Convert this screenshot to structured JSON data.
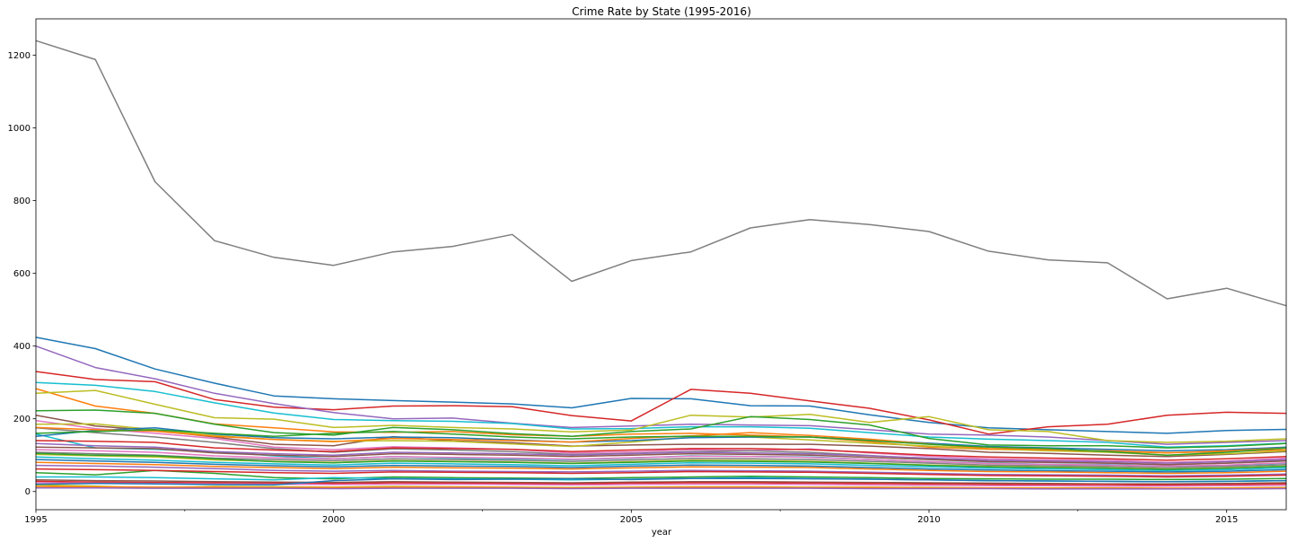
{
  "chart_data": {
    "type": "line",
    "title": "Crime Rate by State (1995-2016)",
    "xlabel": "year",
    "ylabel": "",
    "xlim": [
      1995,
      2016
    ],
    "ylim": [
      -50,
      1300
    ],
    "grid": false,
    "legend": "none",
    "x": [
      1995,
      1996,
      1997,
      1998,
      1999,
      2000,
      2001,
      2002,
      2003,
      2004,
      2005,
      2006,
      2007,
      2008,
      2009,
      2010,
      2011,
      2012,
      2013,
      2014,
      2015,
      2016
    ],
    "x_ticks": [
      1995,
      2000,
      2005,
      2010,
      2015
    ],
    "x_ticks_labels": [
      "1995",
      "2000",
      "2005",
      "2010",
      "2015"
    ],
    "x_minor_ticks": [
      1997.5,
      2002.5,
      2007.5,
      2012.5
    ],
    "y_ticks": [
      0,
      200,
      400,
      600,
      800,
      1000,
      1200
    ],
    "y_ticks_labels": [
      "0",
      "200",
      "400",
      "600",
      "800",
      "1000",
      "1200"
    ],
    "series": [
      {
        "color": "#7f7f7f",
        "values": [
          1240,
          1188,
          852,
          690,
          644,
          622,
          659,
          674,
          707,
          578,
          635,
          659,
          725,
          748,
          734,
          715,
          661,
          637,
          629,
          530,
          559,
          511
        ]
      },
      {
        "color": "#1f77b4",
        "values": [
          424,
          393,
          337,
          298,
          263,
          255,
          250,
          246,
          241,
          230,
          256,
          255,
          236,
          235,
          211,
          190,
          175,
          170,
          165,
          160,
          168,
          171
        ]
      },
      {
        "color": "#d62728",
        "values": [
          330,
          308,
          302,
          253,
          232,
          225,
          235,
          236,
          233,
          209,
          194,
          281,
          270,
          249,
          229,
          197,
          158,
          178,
          185,
          210,
          218,
          215
        ]
      },
      {
        "color": "#9467bd",
        "values": [
          400,
          341,
          310,
          270,
          242,
          217,
          200,
          202,
          188,
          176,
          180,
          185,
          183,
          181,
          170,
          158,
          155,
          150,
          140,
          130,
          135,
          140
        ]
      },
      {
        "color": "#17becf",
        "values": [
          300,
          292,
          275,
          244,
          216,
          198,
          195,
          193,
          187,
          172,
          173,
          178,
          178,
          174,
          162,
          150,
          144,
          140,
          135,
          122,
          126,
          133
        ]
      },
      {
        "color": "#ff7f0e",
        "values": [
          283,
          235,
          215,
          186,
          175,
          164,
          163,
          165,
          156,
          152,
          158,
          160,
          155,
          150,
          137,
          122,
          116,
          114,
          112,
          107,
          110,
          115
        ]
      },
      {
        "color": "#bcbd22",
        "values": [
          270,
          278,
          240,
          203,
          199,
          176,
          182,
          176,
          172,
          164,
          169,
          210,
          205,
          212,
          190,
          206,
          170,
          165,
          140,
          135,
          138,
          145
        ]
      },
      {
        "color": "#2ca02c",
        "values": [
          222,
          224,
          215,
          185,
          162,
          155,
          176,
          170,
          159,
          152,
          165,
          172,
          206,
          198,
          183,
          146,
          128,
          126,
          126,
          120,
          124,
          132
        ]
      },
      {
        "color": "#8c564b",
        "values": [
          210,
          180,
          168,
          150,
          130,
          126,
          151,
          139,
          134,
          125,
          128,
          130,
          130,
          130,
          125,
          118,
          108,
          105,
          100,
          96,
          102,
          110
        ]
      },
      {
        "color": "#e377c2",
        "values": [
          195,
          173,
          160,
          146,
          122,
          115,
          123,
          120,
          116,
          106,
          109,
          115,
          113,
          117,
          106,
          97,
          90,
          87,
          86,
          80,
          84,
          92
        ]
      },
      {
        "color": "#7f7f7f",
        "values": [
          175,
          162,
          150,
          135,
          118,
          108,
          117,
          114,
          110,
          102,
          105,
          110,
          112,
          108,
          99,
          90,
          84,
          82,
          78,
          74,
          78,
          85
        ]
      },
      {
        "color": "#bcbd22",
        "values": [
          185,
          186,
          170,
          154,
          143,
          138,
          140,
          138,
          131,
          124,
          136,
          150,
          150,
          142,
          133,
          125,
          117,
          112,
          108,
          100,
          104,
          112
        ]
      },
      {
        "color": "#17becf",
        "values": [
          158,
          120,
          116,
          110,
          98,
          90,
          96,
          92,
          90,
          88,
          92,
          98,
          96,
          95,
          88,
          82,
          78,
          75,
          74,
          70,
          72,
          78
        ]
      },
      {
        "color": "#1f77b4",
        "values": [
          152,
          168,
          175,
          158,
          148,
          145,
          150,
          148,
          142,
          136,
          140,
          148,
          150,
          150,
          142,
          133,
          124,
          120,
          116,
          112,
          115,
          122
        ]
      },
      {
        "color": "#ff7f0e",
        "values": [
          176,
          170,
          166,
          152,
          143,
          137,
          146,
          143,
          140,
          136,
          146,
          153,
          162,
          154,
          144,
          131,
          118,
          115,
          111,
          106,
          112,
          120
        ]
      },
      {
        "color": "#2ca02c",
        "values": [
          160,
          165,
          170,
          160,
          152,
          160,
          165,
          158,
          150,
          145,
          150,
          152,
          152,
          150,
          140,
          130,
          122,
          118,
          110,
          100,
          108,
          120
        ]
      },
      {
        "color": "#d62728",
        "values": [
          140,
          138,
          135,
          120,
          114,
          110,
          120,
          118,
          116,
          110,
          114,
          118,
          118,
          115,
          108,
          100,
          95,
          92,
          90,
          86,
          90,
          96
        ]
      },
      {
        "color": "#9467bd",
        "values": [
          132,
          126,
          122,
          110,
          104,
          100,
          108,
          106,
          104,
          100,
          104,
          108,
          106,
          104,
          98,
          92,
          86,
          84,
          82,
          78,
          82,
          88
        ]
      },
      {
        "color": "#8c564b",
        "values": [
          122,
          120,
          118,
          106,
          100,
          96,
          104,
          102,
          100,
          96,
          100,
          104,
          102,
          100,
          94,
          88,
          82,
          80,
          78,
          74,
          78,
          84
        ]
      },
      {
        "color": "#e377c2",
        "values": [
          115,
          112,
          108,
          98,
          93,
          90,
          96,
          94,
          92,
          89,
          93,
          97,
          96,
          94,
          88,
          82,
          77,
          75,
          73,
          70,
          73,
          79
        ]
      },
      {
        "color": "#7f7f7f",
        "values": [
          108,
          104,
          100,
          92,
          88,
          85,
          90,
          88,
          86,
          83,
          87,
          91,
          90,
          88,
          83,
          78,
          73,
          71,
          69,
          66,
          69,
          74
        ]
      },
      {
        "color": "#bcbd22",
        "values": [
          102,
          98,
          95,
          87,
          83,
          80,
          85,
          83,
          81,
          78,
          82,
          86,
          85,
          83,
          78,
          73,
          69,
          67,
          65,
          62,
          65,
          70
        ]
      },
      {
        "color": "#17becf",
        "values": [
          95,
          90,
          86,
          80,
          76,
          73,
          78,
          76,
          74,
          71,
          75,
          79,
          78,
          76,
          72,
          68,
          64,
          62,
          60,
          58,
          60,
          65
        ]
      },
      {
        "color": "#1f77b4",
        "values": [
          88,
          84,
          80,
          75,
          71,
          68,
          72,
          70,
          69,
          66,
          70,
          73,
          72,
          70,
          66,
          62,
          59,
          57,
          56,
          54,
          56,
          60
        ]
      },
      {
        "color": "#ff7f0e",
        "values": [
          80,
          77,
          74,
          69,
          66,
          63,
          67,
          65,
          64,
          62,
          65,
          68,
          67,
          66,
          62,
          58,
          55,
          54,
          52,
          50,
          52,
          56
        ]
      },
      {
        "color": "#9467bd",
        "values": [
          72,
          70,
          67,
          63,
          58,
          56,
          58,
          56,
          55,
          54,
          56,
          58,
          57,
          56,
          53,
          50,
          47,
          46,
          45,
          43,
          45,
          48
        ]
      },
      {
        "color": "#2ca02c",
        "values": [
          52,
          46,
          58,
          50,
          38,
          35,
          40,
          38,
          37,
          36,
          38,
          40,
          42,
          40,
          38,
          36,
          35,
          34,
          34,
          33,
          34,
          36
        ]
      },
      {
        "color": "#17becf",
        "values": [
          40,
          40,
          38,
          35,
          32,
          38,
          36,
          35,
          34,
          32,
          34,
          36,
          38,
          36,
          34,
          32,
          30,
          29,
          28,
          27,
          28,
          30
        ]
      },
      {
        "color": "#8c564b",
        "values": [
          32,
          30,
          29,
          27,
          26,
          25,
          27,
          26,
          25,
          24,
          26,
          27,
          27,
          26,
          25,
          24,
          23,
          22,
          21,
          21,
          22,
          24
        ]
      },
      {
        "color": "#d62728",
        "values": [
          28,
          26,
          25,
          24,
          23,
          22,
          24,
          23,
          22,
          21,
          23,
          24,
          24,
          23,
          22,
          21,
          20,
          19,
          19,
          18,
          19,
          21
        ]
      },
      {
        "color": "#e377c2",
        "values": [
          24,
          23,
          22,
          21,
          20,
          19,
          20,
          20,
          19,
          18,
          19,
          20,
          20,
          19,
          18,
          17,
          16,
          16,
          15,
          15,
          16,
          17
        ]
      },
      {
        "color": "#bcbd22",
        "values": [
          18,
          15,
          10,
          14,
          13,
          12,
          14,
          13,
          12,
          11,
          12,
          13,
          13,
          12,
          12,
          11,
          10,
          10,
          10,
          9,
          10,
          11
        ]
      },
      {
        "color": "#ff7f0e",
        "values": [
          14,
          13,
          12,
          12,
          11,
          11,
          12,
          12,
          11,
          10,
          11,
          12,
          12,
          11,
          11,
          10,
          10,
          9,
          9,
          9,
          9,
          10
        ]
      },
      {
        "color": "#1f77b4",
        "values": [
          20,
          22,
          21,
          19,
          18,
          30,
          35,
          33,
          34,
          35,
          33,
          36,
          36,
          35,
          34,
          32,
          30,
          29,
          28,
          27,
          28,
          30
        ]
      },
      {
        "color": "#9467bd",
        "values": [
          10,
          10,
          9,
          9,
          9,
          8,
          9,
          9,
          9,
          8,
          9,
          9,
          9,
          9,
          8,
          8,
          8,
          7,
          7,
          7,
          7,
          8
        ]
      },
      {
        "color": "#2ca02c",
        "values": [
          105,
          100,
          98,
          90,
          82,
          79,
          84,
          82,
          80,
          77,
          80,
          84,
          83,
          81,
          77,
          72,
          68,
          66,
          64,
          61,
          64,
          69
        ]
      },
      {
        "color": "#d62728",
        "values": [
          62,
          60,
          58,
          55,
          52,
          50,
          54,
          53,
          52,
          50,
          52,
          55,
          54,
          53,
          50,
          47,
          44,
          43,
          42,
          40,
          42,
          45
        ]
      }
    ]
  }
}
